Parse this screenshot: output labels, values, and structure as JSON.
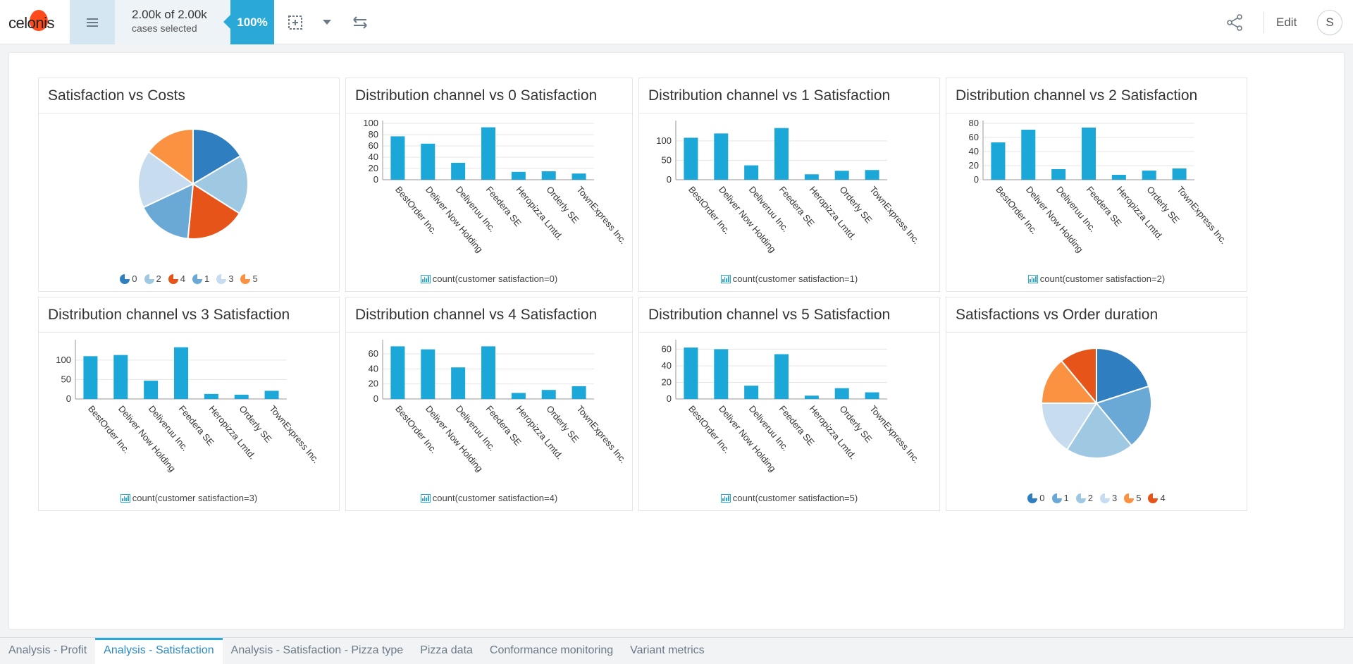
{
  "app": {
    "logo_text": "celonis",
    "cases_count": "2.00k of 2.00k",
    "cases_label": "cases selected",
    "percent": "100%",
    "edit_label": "Edit",
    "avatar_initial": "S"
  },
  "colors": {
    "accent": "#2aa8d8",
    "bar": "#1ba8d8",
    "pie": {
      "0": "#2f7fc0",
      "1": "#6aa9d6",
      "2": "#9fc8e3",
      "3": "#c7dcef",
      "4": "#e6541a",
      "5": "#fb9242"
    }
  },
  "cards": [
    {
      "title": "Satisfaction vs Costs"
    },
    {
      "title": "Distribution channel vs 0 Satisfaction",
      "legend": "count(customer satisfaction=0)"
    },
    {
      "title": "Distribution channel vs 1 Satisfaction",
      "legend": "count(customer satisfaction=1)"
    },
    {
      "title": "Distribution channel vs 2 Satisfaction",
      "legend": "count(customer satisfaction=2)"
    },
    {
      "title": "Distribution channel vs 3 Satisfaction",
      "legend": "count(customer satisfaction=3)"
    },
    {
      "title": "Distribution channel vs 4 Satisfaction",
      "legend": "count(customer satisfaction=4)"
    },
    {
      "title": "Distribution channel vs 5 Satisfaction",
      "legend": "count(customer satisfaction=5)"
    },
    {
      "title": "Satisfactions vs Order duration"
    }
  ],
  "chart_data": [
    {
      "type": "pie",
      "title": "Satisfaction vs Costs",
      "slices": [
        {
          "label": "0",
          "value": 16.5
        },
        {
          "label": "2",
          "value": 17.5
        },
        {
          "label": "4",
          "value": 17.5
        },
        {
          "label": "1",
          "value": 16.5
        },
        {
          "label": "3",
          "value": 17
        },
        {
          "label": "5",
          "value": 15
        }
      ]
    },
    {
      "type": "bar",
      "title": "Distribution channel vs 0 Satisfaction",
      "categories": [
        "BestOrder Inc.",
        "Deliver Now Holding",
        "Deliveruu Inc.",
        "Feedera SE",
        "Heropizza Lmtd.",
        "Orderly SE",
        "TownExpress Inc."
      ],
      "values": [
        77,
        64,
        30,
        93,
        14,
        15,
        11
      ],
      "ylim": [
        0,
        100
      ],
      "yticks": [
        0,
        20,
        40,
        60,
        80,
        100
      ],
      "legend": "count(customer satisfaction=0)"
    },
    {
      "type": "bar",
      "title": "Distribution channel vs 1 Satisfaction",
      "categories": [
        "BestOrder Inc.",
        "Deliver Now Holding",
        "Deliveruu Inc.",
        "Feedera SE",
        "Heropizza Lmtd.",
        "Orderly SE",
        "TownExpress Inc."
      ],
      "values": [
        108,
        119,
        37,
        133,
        14,
        23,
        25
      ],
      "ylim": [
        0,
        145
      ],
      "yticks": [
        0,
        50,
        100
      ],
      "legend": "count(customer satisfaction=1)"
    },
    {
      "type": "bar",
      "title": "Distribution channel vs 2 Satisfaction",
      "categories": [
        "BestOrder Inc.",
        "Deliver Now Holding",
        "Deliveruu Inc.",
        "Feedera SE",
        "Heropizza Lmtd.",
        "Orderly SE",
        "TownExpress Inc."
      ],
      "values": [
        53,
        71,
        15,
        74,
        7,
        13,
        16
      ],
      "ylim": [
        0,
        80
      ],
      "yticks": [
        0,
        20,
        40,
        60,
        80
      ],
      "legend": "count(customer satisfaction=2)"
    },
    {
      "type": "bar",
      "title": "Distribution channel vs 3 Satisfaction",
      "categories": [
        "BestOrder Inc.",
        "Deliver Now Holding",
        "Deliveruu Inc.",
        "Feedera SE",
        "Heropizza Lmtd.",
        "Orderly SE",
        "TownExpress Inc."
      ],
      "values": [
        110,
        113,
        47,
        133,
        13,
        11,
        21
      ],
      "ylim": [
        0,
        145
      ],
      "yticks": [
        0,
        50,
        100
      ],
      "legend": "count(customer satisfaction=3)"
    },
    {
      "type": "bar",
      "title": "Distribution channel vs 4 Satisfaction",
      "categories": [
        "BestOrder Inc.",
        "Deliver Now Holding",
        "Deliveruu Inc.",
        "Feedera SE",
        "Heropizza Lmtd.",
        "Orderly SE",
        "TownExpress Inc."
      ],
      "values": [
        70,
        66,
        42,
        70,
        8,
        12,
        17
      ],
      "ylim": [
        0,
        75
      ],
      "yticks": [
        0,
        20,
        40,
        60
      ],
      "legend": "count(customer satisfaction=4)"
    },
    {
      "type": "bar",
      "title": "Distribution channel vs 5 Satisfaction",
      "categories": [
        "BestOrder Inc.",
        "Deliver Now Holding",
        "Deliveruu Inc.",
        "Feedera SE",
        "Heropizza Lmtd.",
        "Orderly SE",
        "TownExpress Inc."
      ],
      "values": [
        62,
        60,
        16,
        54,
        4,
        13,
        8
      ],
      "ylim": [
        0,
        68
      ],
      "yticks": [
        0,
        20,
        40,
        60
      ],
      "legend": "count(customer satisfaction=5)"
    },
    {
      "type": "pie",
      "title": "Satisfactions vs Order duration",
      "slices": [
        {
          "label": "0",
          "value": 20
        },
        {
          "label": "1",
          "value": 19
        },
        {
          "label": "2",
          "value": 20
        },
        {
          "label": "3",
          "value": 16
        },
        {
          "label": "5",
          "value": 14
        },
        {
          "label": "4",
          "value": 11
        }
      ]
    }
  ],
  "tabs": [
    {
      "label": "Analysis - Profit",
      "active": false
    },
    {
      "label": "Analysis - Satisfaction",
      "active": true
    },
    {
      "label": "Analysis - Satisfaction - Pizza type",
      "active": false
    },
    {
      "label": "Pizza data",
      "active": false
    },
    {
      "label": "Conformance monitoring",
      "active": false
    },
    {
      "label": "Variant metrics",
      "active": false
    }
  ]
}
